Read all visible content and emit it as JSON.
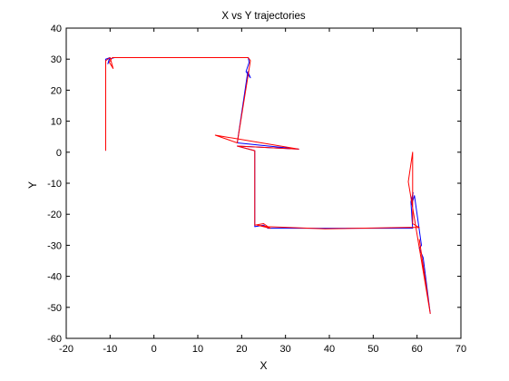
{
  "chart_data": {
    "type": "line",
    "title": "X vs Y trajectories",
    "xlabel": "X",
    "ylabel": "Y",
    "xlim": [
      -20,
      70
    ],
    "ylim": [
      -60,
      40
    ],
    "xticks": [
      -20,
      -10,
      0,
      10,
      20,
      30,
      40,
      50,
      60,
      70
    ],
    "yticks": [
      -60,
      -50,
      -40,
      -30,
      -20,
      -10,
      0,
      10,
      20,
      30,
      40
    ],
    "grid": false,
    "legend": "none",
    "series": [
      {
        "color": "#0000ff",
        "x": [
          -11,
          -11,
          -10,
          -10.5,
          -10.2,
          -9,
          21.5,
          21.7,
          21,
          22,
          21.4,
          19,
          33,
          19,
          23,
          23,
          25,
          26,
          59,
          58.6,
          59.1,
          58.7,
          59.4,
          61,
          60.5,
          61.4,
          63
        ],
        "y": [
          0.5,
          30,
          30.5,
          28.5,
          30,
          30.5,
          30.5,
          29,
          26,
          24,
          26,
          3,
          1,
          2,
          0.5,
          -24,
          -23.5,
          -24.5,
          -24.5,
          -16,
          -13,
          -17,
          -14,
          -30,
          -31,
          -34,
          -52
        ]
      },
      {
        "color": "#ff0000",
        "x": [
          -11,
          -11,
          -10,
          -9.3,
          -10.2,
          -9.5,
          21.5,
          22,
          19,
          14,
          33,
          19,
          23,
          23,
          25,
          26.5,
          23.5,
          26,
          39,
          58.5,
          60.5,
          59,
          59,
          58,
          63,
          60.5
        ],
        "y": [
          0.5,
          29.5,
          30.5,
          27,
          29,
          30.5,
          30.5,
          29.5,
          3,
          5.5,
          1,
          2,
          0.5,
          -23.5,
          -23,
          -24.5,
          -23.5,
          -24,
          -24.7,
          -24.2,
          -24.3,
          -23,
          0,
          -9.5,
          -52,
          -28
        ]
      }
    ]
  }
}
